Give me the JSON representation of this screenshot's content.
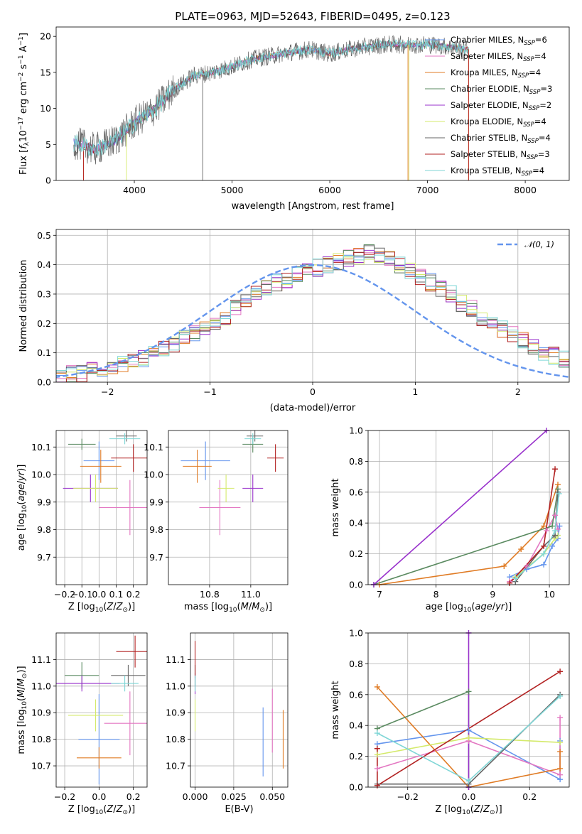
{
  "colors": {
    "chabrier_miles": "#6495ed",
    "salpeter_miles": "#e377c2",
    "kroupa_miles": "#e07b24",
    "chabrier_elodie": "#5a8a60",
    "salpeter_elodie": "#9932cc",
    "kroupa_elodie": "#d4ea6b",
    "chabrier_stelib": "#666666",
    "salpeter_stelib": "#b22222",
    "kroupa_stelib": "#7fd6d6",
    "normal": "#6495ed"
  },
  "chart_data": [
    {
      "id": "spectrum",
      "type": "line",
      "title": "PLATE=0963, MJD=52643, FIBERID=0495, z=0.123",
      "xlabel": "wavelength [Angstrom, rest frame]",
      "ylabel": "Flux [f_λ 10^-17 erg cm^-2 s^-1 A^-1]",
      "xlim": [
        3200,
        8450
      ],
      "ylim": [
        0,
        21.3
      ],
      "xticks": [
        4000,
        5000,
        6000,
        7000,
        8000
      ],
      "yticks": [
        0,
        5,
        10,
        15,
        20
      ],
      "grid": false,
      "legend_position": "right",
      "x": [
        3400,
        3600,
        3800,
        4000,
        4200,
        4400,
        4600,
        4800,
        5000,
        5200,
        5400,
        5600,
        5800,
        6000,
        6200,
        6400,
        6600,
        6800,
        7000,
        7200,
        7400
      ],
      "y": [
        5.2,
        4.3,
        5.5,
        8.0,
        9.8,
        12.5,
        14.5,
        15.0,
        15.8,
        16.8,
        17.3,
        17.8,
        18.2,
        17.6,
        18.2,
        18.6,
        18.9,
        18.8,
        18.9,
        18.6,
        18.2
      ],
      "series": [
        {
          "name": "Chabrier MILES, N_SSP=6",
          "key": "chabrier_miles"
        },
        {
          "name": "Salpeter MILES, N_SSP=4",
          "key": "salpeter_miles"
        },
        {
          "name": "Kroupa MILES, N_SSP=4",
          "key": "kroupa_miles"
        },
        {
          "name": "Chabrier ELODIE, N_SSP=3",
          "key": "chabrier_elodie"
        },
        {
          "name": "Salpeter ELODIE, N_SSP=2",
          "key": "salpeter_elodie"
        },
        {
          "name": "Kroupa ELODIE, N_SSP=4",
          "key": "kroupa_elodie"
        },
        {
          "name": "Chabrier STELIB, N_SSP=4",
          "key": "chabrier_stelib"
        },
        {
          "name": "Salpeter STELIB, N_SSP=3",
          "key": "salpeter_stelib"
        },
        {
          "name": "Kroupa STELIB, N_SSP=4",
          "key": "kroupa_stelib"
        }
      ]
    },
    {
      "id": "residuals",
      "type": "histogram",
      "xlabel": "(data-model)/error",
      "ylabel": "Normed distribution",
      "xlim": [
        -2.5,
        2.5
      ],
      "ylim": [
        0,
        0.52
      ],
      "xticks": [
        -2,
        -1,
        0,
        1,
        2
      ],
      "yticks": [
        0.0,
        0.1,
        0.2,
        0.3,
        0.4,
        0.5
      ],
      "grid": true,
      "legend_position": "top-right",
      "legend": "𝒩(0, 1)",
      "bin_width": 0.1,
      "bins_start": -2.5,
      "values": [
        0.01,
        0.03,
        0.03,
        0.04,
        0.05,
        0.05,
        0.06,
        0.07,
        0.08,
        0.1,
        0.11,
        0.13,
        0.15,
        0.17,
        0.19,
        0.2,
        0.22,
        0.25,
        0.28,
        0.3,
        0.32,
        0.34,
        0.35,
        0.37,
        0.38,
        0.39,
        0.4,
        0.41,
        0.42,
        0.43,
        0.44,
        0.43,
        0.42,
        0.4,
        0.38,
        0.36,
        0.34,
        0.32,
        0.3,
        0.27,
        0.25,
        0.22,
        0.2,
        0.18,
        0.16,
        0.14,
        0.12,
        0.1,
        0.09,
        0.08
      ]
    },
    {
      "id": "age_vs_Z",
      "type": "errorbar",
      "xlabel": "Z [log10(Z/Z☉)]",
      "ylabel": "age [log10(age/yr)]",
      "xlim": [
        -0.25,
        0.28
      ],
      "ylim": [
        9.6,
        10.16
      ],
      "xticks": [
        -0.2,
        -0.1,
        0.0,
        0.1,
        0.2
      ],
      "yticks": [
        9.7,
        9.8,
        9.9,
        10.0,
        10.1
      ],
      "grid": true,
      "points": [
        {
          "key": "chabrier_miles",
          "x": 0.0,
          "y": 10.05,
          "ex": 0.09,
          "ey": 0.07
        },
        {
          "key": "salpeter_miles",
          "x": 0.18,
          "y": 9.88,
          "ex": 0.18,
          "ey": 0.1
        },
        {
          "key": "kroupa_miles",
          "x": 0.01,
          "y": 10.03,
          "ex": 0.12,
          "ey": 0.06
        },
        {
          "key": "chabrier_elodie",
          "x": -0.1,
          "y": 10.11,
          "ex": 0.08,
          "ey": 0.02
        },
        {
          "key": "salpeter_elodie",
          "x": -0.05,
          "y": 9.95,
          "ex": 0.16,
          "ey": 0.05
        },
        {
          "key": "kroupa_elodie",
          "x": -0.02,
          "y": 9.95,
          "ex": 0.13,
          "ey": 0.05
        },
        {
          "key": "chabrier_stelib",
          "x": 0.16,
          "y": 10.14,
          "ex": 0.06,
          "ey": 0.02
        },
        {
          "key": "salpeter_stelib",
          "x": 0.2,
          "y": 10.06,
          "ex": 0.13,
          "ey": 0.05
        },
        {
          "key": "kroupa_stelib",
          "x": 0.15,
          "y": 10.13,
          "ex": 0.09,
          "ey": 0.02
        }
      ]
    },
    {
      "id": "age_vs_mass",
      "type": "errorbar",
      "xlabel": "mass [log10(M/M☉)]",
      "ylabel": "",
      "xlim": [
        10.6,
        11.18
      ],
      "ylim": [
        9.6,
        10.16
      ],
      "xticks": [
        10.8,
        11.0
      ],
      "yticks": [
        9.7,
        9.8,
        9.9,
        10.0,
        10.1
      ],
      "grid": true,
      "points": [
        {
          "key": "chabrier_miles",
          "x": 10.78,
          "y": 10.05,
          "ex": 0.12,
          "ey": 0.07
        },
        {
          "key": "salpeter_miles",
          "x": 10.85,
          "y": 9.88,
          "ex": 0.1,
          "ey": 0.1
        },
        {
          "key": "kroupa_miles",
          "x": 10.74,
          "y": 10.03,
          "ex": 0.07,
          "ey": 0.06
        },
        {
          "key": "chabrier_elodie",
          "x": 11.01,
          "y": 10.11,
          "ex": 0.05,
          "ey": 0.03
        },
        {
          "key": "salpeter_elodie",
          "x": 11.01,
          "y": 9.95,
          "ex": 0.05,
          "ey": 0.05
        },
        {
          "key": "kroupa_elodie",
          "x": 10.88,
          "y": 9.95,
          "ex": 0.04,
          "ey": 0.05
        },
        {
          "key": "chabrier_stelib",
          "x": 11.02,
          "y": 10.14,
          "ex": 0.04,
          "ey": 0.02
        },
        {
          "key": "salpeter_stelib",
          "x": 11.12,
          "y": 10.06,
          "ex": 0.04,
          "ey": 0.05
        },
        {
          "key": "kroupa_stelib",
          "x": 11.01,
          "y": 10.13,
          "ex": 0.04,
          "ey": 0.02
        }
      ]
    },
    {
      "id": "weight_vs_age",
      "type": "line",
      "xlabel": "age [log10(age/yr)]",
      "ylabel": "mass weight",
      "xlim": [
        6.8,
        10.35
      ],
      "ylim": [
        0,
        1.0
      ],
      "xticks": [
        7,
        8,
        9,
        10
      ],
      "yticks": [
        0.0,
        0.2,
        0.4,
        0.6,
        0.8,
        1.0
      ],
      "grid": true,
      "series": [
        {
          "key": "chabrier_miles",
          "x": [
            9.3,
            9.6,
            9.9,
            10.05,
            10.15,
            10.18
          ],
          "y": [
            0.05,
            0.1,
            0.13,
            0.25,
            0.3,
            0.38
          ]
        },
        {
          "key": "salpeter_miles",
          "x": [
            9.3,
            9.6,
            9.95,
            10.1,
            10.15
          ],
          "y": [
            0.02,
            0.12,
            0.35,
            0.45,
            0.36
          ]
        },
        {
          "key": "kroupa_miles",
          "x": [
            7.0,
            9.2,
            9.5,
            9.9,
            10.15
          ],
          "y": [
            0.0,
            0.12,
            0.23,
            0.38,
            0.65
          ]
        },
        {
          "key": "chabrier_elodie",
          "x": [
            6.9,
            10.05,
            10.15
          ],
          "y": [
            0.0,
            0.38,
            0.62
          ]
        },
        {
          "key": "salpeter_elodie",
          "x": [
            6.9,
            9.95
          ],
          "y": [
            0.0,
            1.0
          ]
        },
        {
          "key": "kroupa_elodie",
          "x": [
            9.4,
            9.9,
            10.1,
            10.15
          ],
          "y": [
            0.05,
            0.2,
            0.3,
            0.32
          ]
        },
        {
          "key": "chabrier_stelib",
          "x": [
            9.4,
            9.9,
            10.1,
            10.15
          ],
          "y": [
            0.02,
            0.25,
            0.32,
            0.6
          ]
        },
        {
          "key": "salpeter_stelib",
          "x": [
            9.3,
            9.9,
            10.1
          ],
          "y": [
            0.01,
            0.25,
            0.75
          ]
        },
        {
          "key": "kroupa_stelib",
          "x": [
            9.4,
            9.9,
            10.1,
            10.17
          ],
          "y": [
            0.04,
            0.2,
            0.35,
            0.59
          ]
        }
      ]
    },
    {
      "id": "mass_vs_Z",
      "type": "errorbar",
      "xlabel": "Z [log10(Z/Z☉)]",
      "ylabel": "mass [log10(M/M☉)]",
      "xlim": [
        -0.25,
        0.28
      ],
      "ylim": [
        10.62,
        11.2
      ],
      "xticks": [
        -0.2,
        0.0,
        0.2
      ],
      "yticks": [
        10.7,
        10.8,
        10.9,
        11.0,
        11.1
      ],
      "grid": true,
      "points": [
        {
          "key": "chabrier_miles",
          "x": 0.0,
          "y": 10.8,
          "ex": 0.12,
          "ey": 0.17
        },
        {
          "key": "salpeter_miles",
          "x": 0.18,
          "y": 10.86,
          "ex": 0.15,
          "ey": 0.12
        },
        {
          "key": "kroupa_miles",
          "x": 0.0,
          "y": 10.73,
          "ex": 0.13,
          "ey": 0.04
        },
        {
          "key": "chabrier_elodie",
          "x": -0.1,
          "y": 11.04,
          "ex": 0.1,
          "ey": 0.05
        },
        {
          "key": "salpeter_elodie",
          "x": -0.1,
          "y": 11.01,
          "ex": 0.22,
          "ey": 0.03
        },
        {
          "key": "kroupa_elodie",
          "x": -0.02,
          "y": 10.89,
          "ex": 0.16,
          "ey": 0.06
        },
        {
          "key": "chabrier_stelib",
          "x": 0.17,
          "y": 11.04,
          "ex": 0.1,
          "ey": 0.04
        },
        {
          "key": "salpeter_stelib",
          "x": 0.21,
          "y": 11.13,
          "ex": 0.11,
          "ey": 0.06
        },
        {
          "key": "kroupa_stelib",
          "x": 0.15,
          "y": 11.01,
          "ex": 0.08,
          "ey": 0.03
        }
      ]
    },
    {
      "id": "mass_vs_ebv",
      "type": "errorbar",
      "xlabel": "E(B-V)",
      "ylabel": "",
      "xlim": [
        -0.003,
        0.06
      ],
      "ylim": [
        10.62,
        11.2
      ],
      "xticks": [
        0.0,
        0.025,
        0.05
      ],
      "xtick_labels": [
        "0.000",
        "0.025",
        "0.050"
      ],
      "yticks": [
        10.7,
        10.8,
        10.9,
        11.0,
        11.1
      ],
      "grid": true,
      "points": [
        {
          "key": "chabrier_miles",
          "x": 0.044,
          "y": 10.79,
          "ex": 0,
          "ey": 0.13
        },
        {
          "key": "salpeter_miles",
          "x": 0.05,
          "y": 10.87,
          "ex": 0,
          "ey": 0.12
        },
        {
          "key": "kroupa_miles",
          "x": 0.057,
          "y": 10.8,
          "ex": 0,
          "ey": 0.11
        },
        {
          "key": "chabrier_elodie",
          "x": 0.0,
          "y": 11.03,
          "ex": 0,
          "ey": 0.05
        },
        {
          "key": "salpeter_elodie",
          "x": 0.0,
          "y": 11.01,
          "ex": 0,
          "ey": 0.04
        },
        {
          "key": "kroupa_elodie",
          "x": 0.0,
          "y": 10.89,
          "ex": 0,
          "ey": 0.06
        },
        {
          "key": "chabrier_stelib",
          "x": 0.0,
          "y": 11.04,
          "ex": 0,
          "ey": 0.04
        },
        {
          "key": "salpeter_stelib",
          "x": 0.0,
          "y": 11.1,
          "ex": 0,
          "ey": 0.07
        },
        {
          "key": "kroupa_stelib",
          "x": 0.0,
          "y": 11.01,
          "ex": 0,
          "ey": 0.03
        }
      ]
    },
    {
      "id": "weight_vs_Z",
      "type": "line",
      "xlabel": "Z [log10(Z/Z☉)]",
      "ylabel": "mass weight",
      "xlim": [
        -0.33,
        0.33
      ],
      "ylim": [
        0,
        1.0
      ],
      "xticks": [
        -0.2,
        0.0,
        0.2
      ],
      "yticks": [
        0.0,
        0.2,
        0.4,
        0.6,
        0.8,
        1.0
      ],
      "grid": true,
      "series": [
        {
          "key": "chabrier_miles",
          "x": [
            -0.3,
            0.0,
            0.3,
            0.3
          ],
          "y": [
            0.28,
            0.37,
            0.05,
            0.3
          ]
        },
        {
          "key": "salpeter_miles",
          "x": [
            -0.3,
            0.0,
            0.3,
            0.3
          ],
          "y": [
            0.12,
            0.3,
            0.08,
            0.45
          ]
        },
        {
          "key": "kroupa_miles",
          "x": [
            -0.3,
            0.0,
            0.3,
            0.3
          ],
          "y": [
            0.65,
            0.0,
            0.12,
            0.23
          ]
        },
        {
          "key": "chabrier_elodie",
          "x": [
            -0.3,
            0.0,
            0.0
          ],
          "y": [
            0.38,
            0.62,
            0.0
          ]
        },
        {
          "key": "salpeter_elodie",
          "x": [
            0.0,
            0.0
          ],
          "y": [
            0.0,
            1.0
          ]
        },
        {
          "key": "kroupa_elodie",
          "x": [
            -0.3,
            0.0,
            0.3
          ],
          "y": [
            0.21,
            0.32,
            0.29
          ]
        },
        {
          "key": "chabrier_stelib",
          "x": [
            -0.3,
            0.0,
            0.3
          ],
          "y": [
            0.02,
            0.02,
            0.6
          ]
        },
        {
          "key": "salpeter_stelib",
          "x": [
            -0.3,
            -0.3,
            0.3
          ],
          "y": [
            0.25,
            0.01,
            0.75
          ]
        },
        {
          "key": "kroupa_stelib",
          "x": [
            -0.3,
            0.0,
            0.3
          ],
          "y": [
            0.35,
            0.04,
            0.59
          ]
        }
      ]
    }
  ]
}
